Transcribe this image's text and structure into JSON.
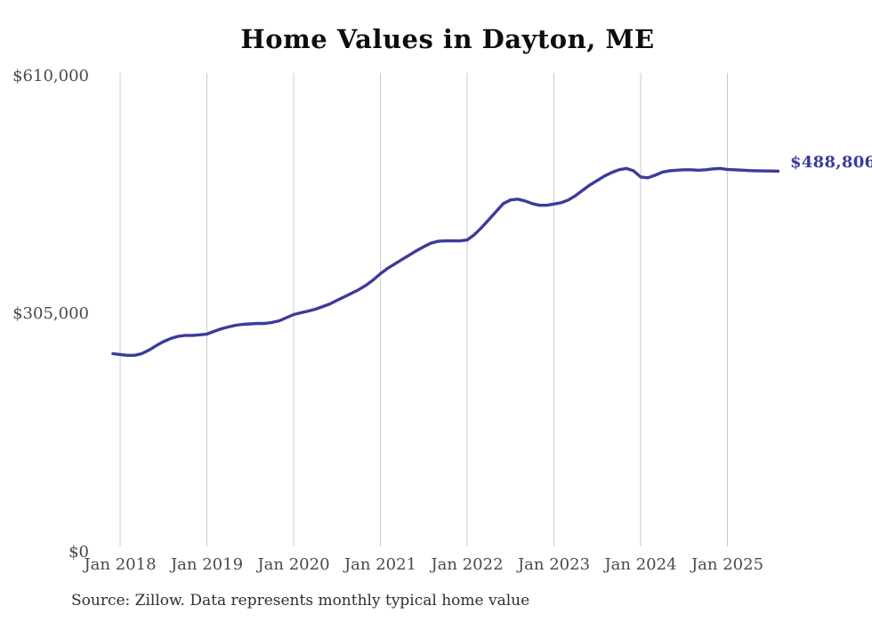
{
  "chart_data": {
    "type": "line",
    "title": "Home Values in Dayton, ME",
    "source": "Source: Zillow. Data represents monthly typical home value",
    "x_ticks": [
      "Jan 2018",
      "Jan 2019",
      "Jan 2020",
      "Jan 2021",
      "Jan 2022",
      "Jan 2023",
      "Jan 2024",
      "Jan 2025"
    ],
    "y_ticks": [
      "$610,000",
      "$305,000",
      "$0"
    ],
    "ylim": [
      0,
      610000
    ],
    "grid": "vertical-only",
    "legend": "none",
    "line_color": "#3b3b9b",
    "annotation": {
      "text": "$488,806",
      "value": 488806
    },
    "series": [
      {
        "name": "Monthly typical home value",
        "months": [
          "Dec 2017",
          "Jan 2018",
          "Feb 2018",
          "Mar 2018",
          "Apr 2018",
          "May 2018",
          "Jun 2018",
          "Jul 2018",
          "Aug 2018",
          "Sep 2018",
          "Oct 2018",
          "Nov 2018",
          "Dec 2018",
          "Jan 2019",
          "Feb 2019",
          "Mar 2019",
          "Apr 2019",
          "May 2019",
          "Jun 2019",
          "Jul 2019",
          "Aug 2019",
          "Sep 2019",
          "Oct 2019",
          "Nov 2019",
          "Dec 2019",
          "Jan 2020",
          "Feb 2020",
          "Mar 2020",
          "Apr 2020",
          "May 2020",
          "Jun 2020",
          "Jul 2020",
          "Aug 2020",
          "Sep 2020",
          "Oct 2020",
          "Nov 2020",
          "Dec 2020",
          "Jan 2021",
          "Feb 2021",
          "Mar 2021",
          "Apr 2021",
          "May 2021",
          "Jun 2021",
          "Jul 2021",
          "Aug 2021",
          "Sep 2021",
          "Oct 2021",
          "Nov 2021",
          "Dec 2021",
          "Jan 2022",
          "Feb 2022",
          "Mar 2022",
          "Apr 2022",
          "May 2022",
          "Jun 2022",
          "Jul 2022",
          "Aug 2022",
          "Sep 2022",
          "Oct 2022",
          "Nov 2022",
          "Dec 2022",
          "Jan 2023",
          "Feb 2023",
          "Mar 2023",
          "Apr 2023",
          "May 2023",
          "Jun 2023",
          "Jul 2023",
          "Aug 2023",
          "Sep 2023",
          "Oct 2023",
          "Nov 2023",
          "Dec 2023",
          "Jan 2024",
          "Feb 2024",
          "Mar 2024",
          "Apr 2024",
          "May 2024",
          "Jun 2024",
          "Jul 2024",
          "Aug 2024",
          "Sep 2024",
          "Oct 2024",
          "Nov 2024",
          "Dec 2024",
          "Jan 2025",
          "Feb 2025",
          "Mar 2025",
          "Apr 2025",
          "May 2025",
          "Jun 2025",
          "Jul 2025",
          "Aug 2025"
        ],
        "values": [
          254900,
          253800,
          252800,
          252800,
          254900,
          259500,
          265200,
          270300,
          274300,
          277100,
          278300,
          278300,
          279000,
          280000,
          283400,
          286800,
          289100,
          291300,
          292500,
          293000,
          293600,
          293600,
          294800,
          297000,
          301000,
          305000,
          307300,
          309500,
          311800,
          315200,
          318600,
          323200,
          327700,
          332300,
          336800,
          342500,
          349400,
          357300,
          364200,
          369900,
          375600,
          381200,
          386900,
          392000,
          396600,
          398900,
          399400,
          399400,
          399400,
          400600,
          407400,
          416500,
          426700,
          437000,
          447200,
          451800,
          452900,
          450600,
          447200,
          445000,
          445000,
          446600,
          448300,
          451800,
          457400,
          464300,
          471100,
          476800,
          482500,
          487000,
          490500,
          492200,
          489300,
          481300,
          480200,
          483600,
          487600,
          489300,
          489900,
          490500,
          490500,
          489900,
          490500,
          491600,
          492200,
          491000,
          490500,
          490000,
          489500,
          489200,
          489000,
          488900,
          488806
        ]
      }
    ]
  }
}
